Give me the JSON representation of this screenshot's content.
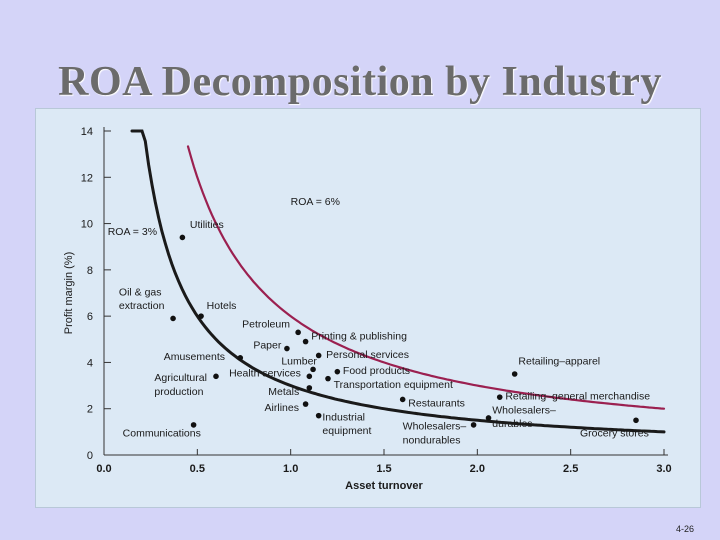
{
  "slide": {
    "title": "ROA Decomposition by Industry",
    "page_number": "4-26"
  },
  "colors": {
    "background": "#d4d4f8",
    "panel": "#dce9f5",
    "roa3_curve": "#1a1a1a",
    "roa6_curve": "#9b2050",
    "title": "#6b6b6b"
  },
  "chart_data": {
    "type": "scatter",
    "xlabel": "Asset turnover",
    "ylabel": "Profit margin (%)",
    "xlim": [
      0.0,
      3.0
    ],
    "ylim": [
      0,
      14
    ],
    "x_ticks": [
      "0.0",
      "0.5",
      "1.0",
      "1.5",
      "2.0",
      "2.5",
      "3.0"
    ],
    "y_ticks": [
      "0",
      "2",
      "4",
      "6",
      "8",
      "10",
      "12",
      "14"
    ],
    "curves": [
      {
        "name": "ROA = 3%",
        "roa": 3,
        "x_range": [
          0.15,
          3.0
        ],
        "color": "#1a1a1a"
      },
      {
        "name": "ROA = 6%",
        "roa": 6,
        "x_range": [
          0.45,
          3.0
        ],
        "color": "#9b2050"
      }
    ],
    "points": [
      {
        "label": "Utilities",
        "x": 0.42,
        "y": 9.4
      },
      {
        "label": "Oil & gas extraction",
        "x": 0.37,
        "y": 5.9
      },
      {
        "label": "Hotels",
        "x": 0.52,
        "y": 6.0
      },
      {
        "label": "Petroleum",
        "x": 1.04,
        "y": 5.3
      },
      {
        "label": "Printing & publishing",
        "x": 1.08,
        "y": 4.9
      },
      {
        "label": "Paper",
        "x": 0.98,
        "y": 4.6
      },
      {
        "label": "Personal services",
        "x": 1.15,
        "y": 4.3
      },
      {
        "label": "Amusements",
        "x": 0.73,
        "y": 4.2
      },
      {
        "label": "Lumber",
        "x": 1.12,
        "y": 3.7
      },
      {
        "label": "Food products",
        "x": 1.25,
        "y": 3.6
      },
      {
        "label": "Agricultural production",
        "x": 0.6,
        "y": 3.4
      },
      {
        "label": "Health services",
        "x": 1.1,
        "y": 3.4
      },
      {
        "label": "Transportation equipment",
        "x": 1.2,
        "y": 3.3
      },
      {
        "label": "Metals",
        "x": 1.1,
        "y": 2.9
      },
      {
        "label": "Retailing–apparel",
        "x": 2.2,
        "y": 3.5
      },
      {
        "label": "Retailing–general merchandise",
        "x": 2.12,
        "y": 2.5
      },
      {
        "label": "Restaurants",
        "x": 1.6,
        "y": 2.4
      },
      {
        "label": "Airlines",
        "x": 1.08,
        "y": 2.2
      },
      {
        "label": "Industrial equipment",
        "x": 1.15,
        "y": 1.7
      },
      {
        "label": "Wholesalers–nondurables",
        "x": 1.98,
        "y": 1.3
      },
      {
        "label": "Wholesalers–durables",
        "x": 2.06,
        "y": 1.6
      },
      {
        "label": "Grocery stores",
        "x": 2.85,
        "y": 1.5
      },
      {
        "label": "Communications",
        "x": 0.48,
        "y": 1.3
      }
    ],
    "annotations": [
      {
        "text": "ROA = 6%",
        "x": 1.0,
        "y": 10.8
      },
      {
        "text": "ROA = 3%",
        "x": 0.02,
        "y": 9.5
      },
      {
        "text": "Utilities",
        "x": 0.46,
        "y": 9.8
      },
      {
        "text": "Oil & gas",
        "x": 0.08,
        "y": 6.9
      },
      {
        "text": "extraction",
        "x": 0.08,
        "y": 6.3
      },
      {
        "text": "Hotels",
        "x": 0.55,
        "y": 6.3
      },
      {
        "text": "Petroleum",
        "x": 0.74,
        "y": 5.5
      },
      {
        "text": "Printing & publishing",
        "x": 1.11,
        "y": 5.0
      },
      {
        "text": "Paper",
        "x": 0.8,
        "y": 4.6
      },
      {
        "text": "Personal services",
        "x": 1.19,
        "y": 4.2
      },
      {
        "text": "Amusements",
        "x": 0.32,
        "y": 4.1
      },
      {
        "text": "Lumber",
        "x": 0.95,
        "y": 3.9
      },
      {
        "text": "Food products",
        "x": 1.28,
        "y": 3.5
      },
      {
        "text": "Agricultural",
        "x": 0.27,
        "y": 3.2
      },
      {
        "text": "production",
        "x": 0.27,
        "y": 2.6
      },
      {
        "text": "Health services",
        "x": 0.67,
        "y": 3.4
      },
      {
        "text": "Transportation equipment",
        "x": 1.23,
        "y": 2.9
      },
      {
        "text": "Metals",
        "x": 0.88,
        "y": 2.6
      },
      {
        "text": "Retailing–apparel",
        "x": 2.22,
        "y": 3.9
      },
      {
        "text": "Retailing–general merchandise",
        "x": 2.15,
        "y": 2.4
      },
      {
        "text": "Restaurants",
        "x": 1.63,
        "y": 2.1
      },
      {
        "text": "Airlines",
        "x": 0.86,
        "y": 1.9
      },
      {
        "text": "Wholesalers–",
        "x": 2.08,
        "y": 1.8
      },
      {
        "text": "durables",
        "x": 2.08,
        "y": 1.2
      },
      {
        "text": "Industrial",
        "x": 1.17,
        "y": 1.5
      },
      {
        "text": "equipment",
        "x": 1.17,
        "y": 0.9
      },
      {
        "text": "Wholesalers–",
        "x": 1.6,
        "y": 1.1
      },
      {
        "text": "nondurables",
        "x": 1.6,
        "y": 0.5
      },
      {
        "text": "Grocery stores",
        "x": 2.55,
        "y": 0.8
      },
      {
        "text": "Communications",
        "x": 0.1,
        "y": 0.8
      }
    ]
  }
}
